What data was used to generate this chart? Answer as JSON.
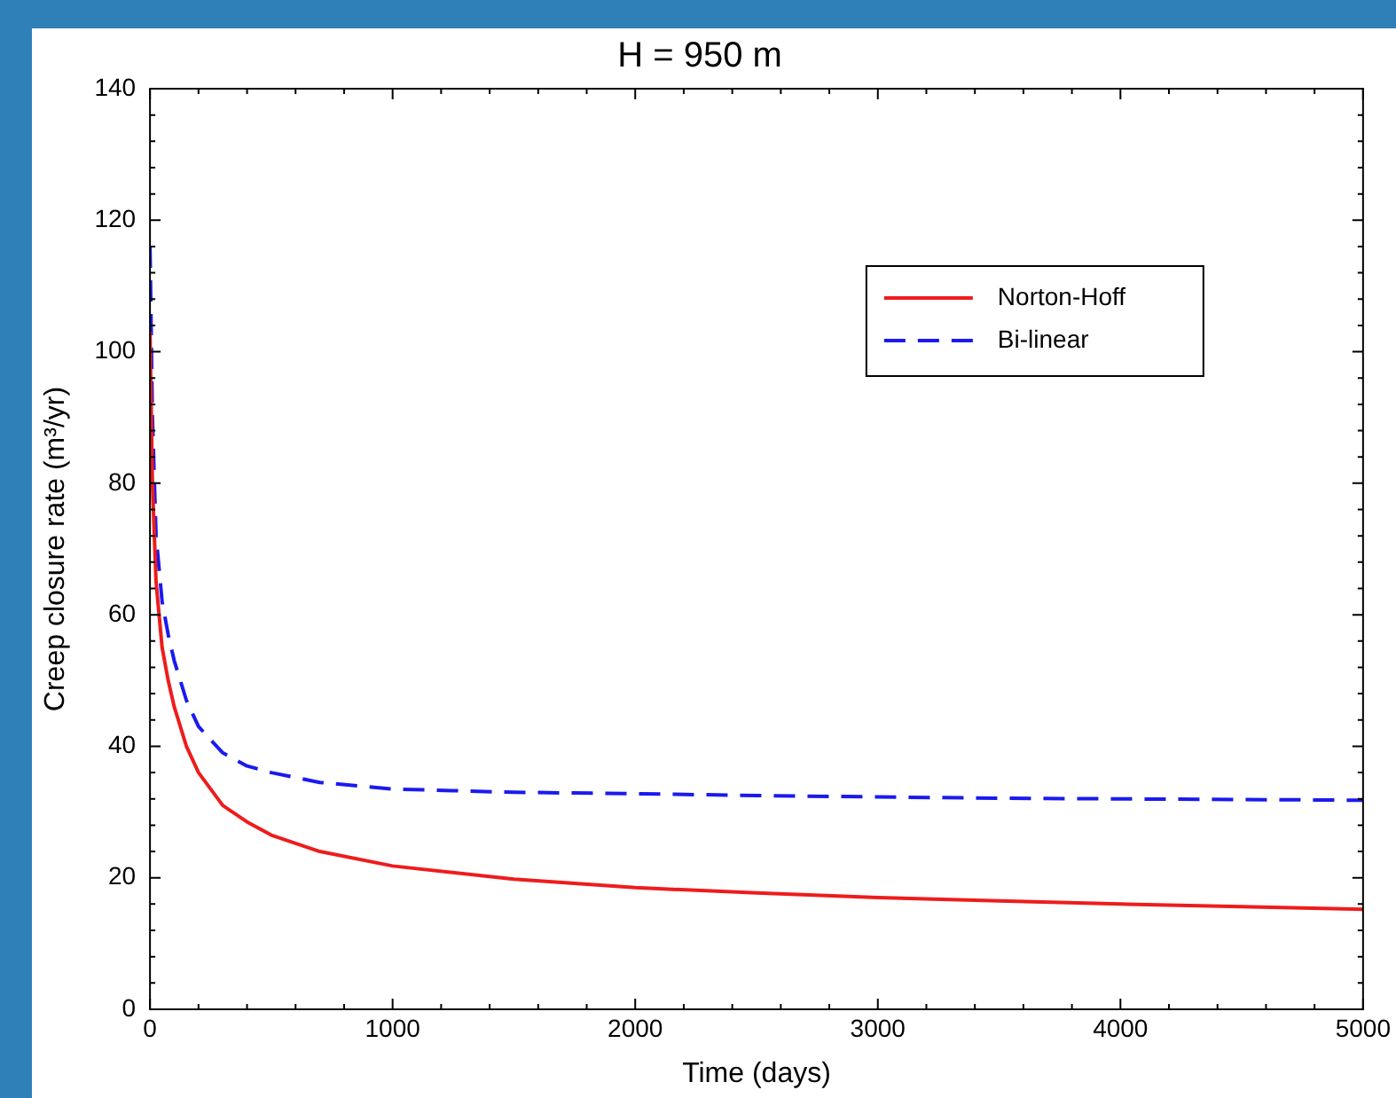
{
  "chart_data": {
    "type": "line",
    "title": "H = 950 m",
    "xlabel": "Time (days)",
    "ylabel": "Creep closure rate (m³/yr)",
    "xlim": [
      0,
      5000
    ],
    "ylim": [
      0,
      140
    ],
    "xticks": [
      0,
      {
        "value": 200,
        "label": null
      },
      {
        "value": 400,
        "label": null
      },
      {
        "value": 600,
        "label": null
      },
      {
        "value": 800,
        "label": null
      },
      1000,
      {
        "value": 1200,
        "label": null
      },
      {
        "value": 1400,
        "label": null
      },
      {
        "value": 1600,
        "label": null
      },
      {
        "value": 1800,
        "label": null
      },
      2000,
      {
        "value": 2200,
        "label": null
      },
      {
        "value": 2400,
        "label": null
      },
      {
        "value": 2600,
        "label": null
      },
      {
        "value": 2800,
        "label": null
      },
      3000,
      {
        "value": 3200,
        "label": null
      },
      {
        "value": 3400,
        "label": null
      },
      {
        "value": 3600,
        "label": null
      },
      {
        "value": 3800,
        "label": null
      },
      4000,
      {
        "value": 4200,
        "label": null
      },
      {
        "value": 4400,
        "label": null
      },
      {
        "value": 4600,
        "label": null
      },
      {
        "value": 4800,
        "label": null
      },
      5000
    ],
    "yticks": [
      0,
      {
        "value": 4,
        "label": null
      },
      {
        "value": 8,
        "label": null
      },
      {
        "value": 12,
        "label": null
      },
      {
        "value": 16,
        "label": null
      },
      20,
      {
        "value": 24,
        "label": null
      },
      {
        "value": 28,
        "label": null
      },
      {
        "value": 32,
        "label": null
      },
      {
        "value": 36,
        "label": null
      },
      40,
      {
        "value": 44,
        "label": null
      },
      {
        "value": 48,
        "label": null
      },
      {
        "value": 52,
        "label": null
      },
      {
        "value": 56,
        "label": null
      },
      60,
      {
        "value": 64,
        "label": null
      },
      {
        "value": 68,
        "label": null
      },
      {
        "value": 72,
        "label": null
      },
      {
        "value": 76,
        "label": null
      },
      80,
      {
        "value": 84,
        "label": null
      },
      {
        "value": 88,
        "label": null
      },
      {
        "value": 92,
        "label": null
      },
      {
        "value": 96,
        "label": null
      },
      100,
      {
        "value": 104,
        "label": null
      },
      {
        "value": 108,
        "label": null
      },
      {
        "value": 112,
        "label": null
      },
      {
        "value": 116,
        "label": null
      },
      120,
      {
        "value": 124,
        "label": null
      },
      {
        "value": 128,
        "label": null
      },
      {
        "value": 132,
        "label": null
      },
      {
        "value": 136,
        "label": null
      },
      140
    ],
    "grid": false,
    "legend": "top right",
    "marker": "none",
    "x": [
      0,
      10,
      25,
      50,
      75,
      100,
      150,
      200,
      300,
      400,
      500,
      700,
      1000,
      1500,
      2000,
      2500,
      3000,
      3500,
      4000,
      4500,
      5000
    ],
    "series": [
      {
        "name": "Norton-Hoff",
        "color": "#ee1c1c",
        "line_style": "solid",
        "values": [
          103,
          80,
          65,
          55,
          50,
          46,
          40,
          36,
          31,
          28.5,
          26.5,
          24,
          21.8,
          19.8,
          18.5,
          17.7,
          17,
          16.5,
          16,
          15.6,
          15.2
        ]
      },
      {
        "name": "Bi-linear",
        "color": "#1a1aee",
        "line_style": "dashed",
        "values": [
          116,
          90,
          72,
          62,
          57,
          53,
          47,
          43,
          39,
          37,
          36,
          34.5,
          33.5,
          33,
          32.8,
          32.5,
          32.3,
          32.1,
          32,
          31.9,
          31.8
        ]
      }
    ]
  }
}
